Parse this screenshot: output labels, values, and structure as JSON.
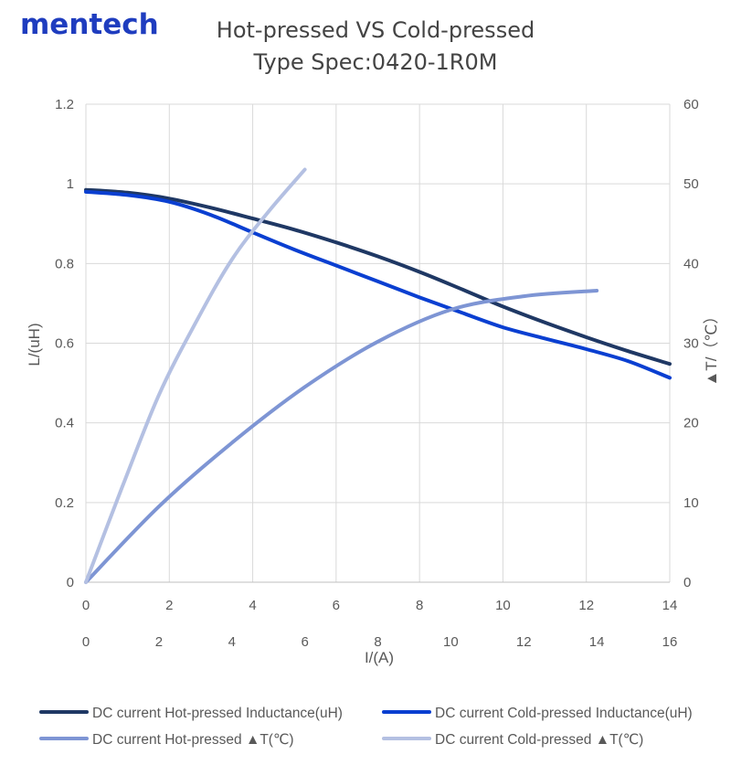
{
  "brand": {
    "name": "mentech",
    "color": "#1f3dbf"
  },
  "chart_data": {
    "type": "line",
    "title": "Hot-pressed VS Cold-pressed",
    "subtitle": "Type Spec:0420-1R0M",
    "grid": true,
    "xlabel": "I/(A)",
    "ylabel_left": "L/(uH)",
    "ylabel_right": "▲T/（℃）",
    "x_primary": {
      "range": [
        0,
        14
      ],
      "ticks": [
        "0",
        "2",
        "4",
        "6",
        "8",
        "10",
        "12",
        "14"
      ]
    },
    "x_secondary": {
      "range": [
        0,
        16
      ],
      "ticks": [
        "0",
        "2",
        "4",
        "6",
        "8",
        "10",
        "12",
        "14",
        "16"
      ]
    },
    "y_left": {
      "range": [
        0,
        1.2
      ],
      "ticks": [
        "0",
        "0.2",
        "0.4",
        "0.6",
        "0.8",
        "1",
        "1.2"
      ]
    },
    "y_right": {
      "range": [
        0,
        60
      ],
      "ticks": [
        "0",
        "10",
        "20",
        "30",
        "40",
        "50",
        "60"
      ]
    },
    "legend_position": "bottom",
    "series": [
      {
        "name": "DC current Hot-pressed Inductance(uH)",
        "color": "#1f3864",
        "axis": "primary",
        "x": [
          0,
          1,
          2,
          3,
          4,
          5,
          6,
          7,
          8,
          9,
          10,
          11,
          12,
          13,
          14
        ],
        "y": [
          0.985,
          0.978,
          0.963,
          0.94,
          0.913,
          0.885,
          0.853,
          0.818,
          0.779,
          0.736,
          0.692,
          0.652,
          0.615,
          0.58,
          0.548
        ]
      },
      {
        "name": "DC current Cold-pressed Inductance(uH)",
        "color": "#0a3fd1",
        "axis": "primary",
        "x": [
          0,
          1,
          2,
          3,
          4,
          5,
          6,
          7,
          8,
          9,
          10,
          11,
          12,
          13,
          14
        ],
        "y": [
          0.98,
          0.972,
          0.955,
          0.922,
          0.878,
          0.835,
          0.795,
          0.755,
          0.715,
          0.677,
          0.64,
          0.612,
          0.585,
          0.555,
          0.513
        ]
      },
      {
        "name": "DC current Hot-pressed ▲T(℃)",
        "color": "#7e95d4",
        "axis": "secondary",
        "x": [
          0,
          2,
          4,
          6,
          8,
          10,
          12,
          14
        ],
        "y": [
          0,
          9.5,
          17.5,
          24.5,
          30.2,
          34.2,
          35.9,
          36.6
        ]
      },
      {
        "name": "DC current Cold-pressed ▲T(℃)",
        "color": "#b4c0e2",
        "axis": "secondary",
        "x": [
          0,
          1,
          2,
          3,
          4,
          5,
          6
        ],
        "y": [
          0,
          12,
          23.5,
          32.5,
          40.5,
          46.5,
          51.8
        ]
      }
    ]
  }
}
